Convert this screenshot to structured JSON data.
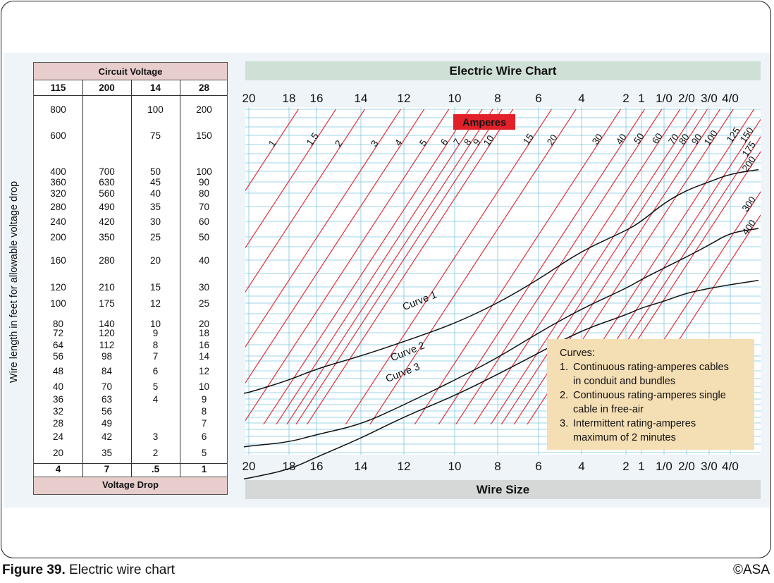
{
  "caption": {
    "label": "Figure 39.",
    "text": "Electric wire chart"
  },
  "credit": "©ASA",
  "voltage_table": {
    "header": "Circuit Voltage",
    "footer": "Voltage Drop",
    "columns": [
      "115",
      "200",
      "14",
      "28"
    ],
    "rows": [
      [
        "800",
        "",
        "100",
        "200"
      ],
      [
        "600",
        "",
        "75",
        "150"
      ],
      [
        "400",
        "700",
        "50",
        "100"
      ],
      [
        "360",
        "630",
        "45",
        "90"
      ],
      [
        "320",
        "560",
        "40",
        "80"
      ],
      [
        "280",
        "490",
        "35",
        "70"
      ],
      [
        "240",
        "420",
        "30",
        "60"
      ],
      [
        "200",
        "350",
        "25",
        "50"
      ],
      [
        "160",
        "280",
        "20",
        "40"
      ],
      [
        "120",
        "210",
        "15",
        "30"
      ],
      [
        "100",
        "175",
        "12",
        "25"
      ],
      [
        "80",
        "140",
        "10",
        "20"
      ],
      [
        "72",
        "120",
        "9",
        "18"
      ],
      [
        "64",
        "112",
        "8",
        "16"
      ],
      [
        "56",
        "98",
        "7",
        "14"
      ],
      [
        "48",
        "84",
        "6",
        "12"
      ],
      [
        "40",
        "70",
        "5",
        "10"
      ],
      [
        "36",
        "63",
        "4",
        "9"
      ],
      [
        "32",
        "56",
        "",
        "8"
      ],
      [
        "28",
        "49",
        "",
        "7"
      ],
      [
        "24",
        "42",
        "3",
        "6"
      ],
      [
        "20",
        "35",
        "2",
        "5"
      ]
    ],
    "voltage_drop": [
      "4",
      "7",
      ".5",
      "1"
    ]
  },
  "chart_data": {
    "type": "line",
    "title": "Electric Wire Chart",
    "xlabel": "Wire Size",
    "ylabel": "Wire length in feet for allowable voltage drop",
    "x_ticks": [
      "20",
      "18",
      "16",
      "14",
      "12",
      "10",
      "8",
      "6",
      "4",
      "2",
      "1",
      "1/0",
      "2/0",
      "3/0",
      "4/0"
    ],
    "y_ticks": [
      "800",
      "600",
      "400",
      "360",
      "320",
      "280",
      "240",
      "200",
      "160",
      "120",
      "100",
      "80",
      "72",
      "64",
      "56",
      "48",
      "40",
      "36",
      "32",
      "28",
      "24",
      "20"
    ],
    "ampere_label": "Amperes",
    "ampere_lines": [
      "1",
      "1.5",
      "2",
      "3",
      "4",
      "5",
      "6",
      "7",
      "8",
      "9",
      "10",
      "15",
      "20",
      "30",
      "40",
      "50",
      "60",
      "70",
      "80",
      "90",
      "100",
      "125",
      "150",
      "175",
      "200",
      "300",
      "400"
    ],
    "series": [
      {
        "name": "Curve 1",
        "points": [
          [
            "20",
            38
          ],
          [
            "18",
            43
          ],
          [
            "16",
            49
          ],
          [
            "14",
            56
          ],
          [
            "12",
            66
          ],
          [
            "10",
            80
          ],
          [
            "8",
            100
          ],
          [
            "6",
            130
          ],
          [
            "4",
            175
          ],
          [
            "2",
            215
          ],
          [
            "1",
            240
          ],
          [
            "1/0",
            290
          ],
          [
            "2/0",
            330
          ],
          [
            "3/0",
            360
          ],
          [
            "4/0",
            390
          ]
        ]
      },
      {
        "name": "Curve 2",
        "points": [
          [
            "20",
            21.5
          ],
          [
            "18",
            22.5
          ],
          [
            "16",
            24.5
          ],
          [
            "14",
            27.5
          ],
          [
            "12",
            34
          ],
          [
            "10",
            43
          ],
          [
            "8",
            55
          ],
          [
            "6",
            72
          ],
          [
            "4",
            94
          ],
          [
            "2",
            118
          ],
          [
            "1",
            130
          ],
          [
            "1/0",
            147
          ],
          [
            "2/0",
            165
          ],
          [
            "3/0",
            185
          ],
          [
            "4/0",
            210
          ]
        ]
      },
      {
        "name": "Curve 3",
        "points": [
          [
            "20",
            15
          ],
          [
            "18",
            16.5
          ],
          [
            "16",
            19
          ],
          [
            "14",
            23.5
          ],
          [
            "12",
            30
          ],
          [
            "10",
            37
          ],
          [
            "8",
            46
          ],
          [
            "6",
            58
          ],
          [
            "4",
            74
          ],
          [
            "2",
            88
          ],
          [
            "1",
            95
          ],
          [
            "1/0",
            102
          ],
          [
            "2/0",
            112
          ],
          [
            "3/0",
            118
          ],
          [
            "4/0",
            123
          ]
        ]
      }
    ],
    "legend": {
      "title": "Curves:",
      "items": [
        {
          "num": "1.",
          "lines": [
            "Continuous rating-amperes cables",
            "in conduit and bundles"
          ]
        },
        {
          "num": "2.",
          "lines": [
            "Continuous rating-amperes single",
            "cable in free-air"
          ]
        },
        {
          "num": "3.",
          "lines": [
            "Intermittent rating-amperes",
            "maximum of 2 minutes"
          ]
        }
      ]
    },
    "colors": {
      "grid": "#7ec6dd",
      "ampere_lines": "#e0202a",
      "curves": "#111111",
      "legend_bg": "#f4deb3"
    }
  }
}
